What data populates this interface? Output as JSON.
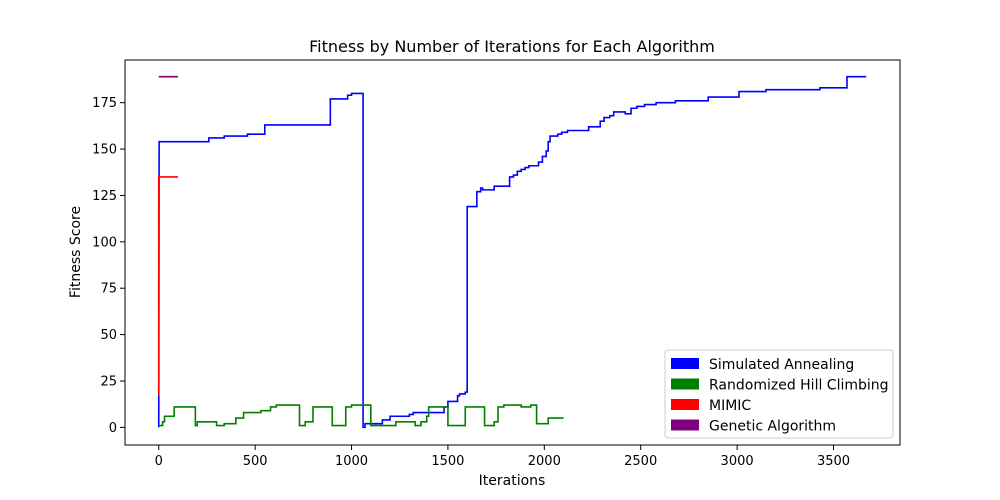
{
  "chart_data": {
    "type": "line",
    "title": "Fitness by Number of Iterations for Each Algorithm",
    "xlabel": "Iterations",
    "ylabel": "Fitness Score",
    "xlim": [
      -175,
      3845
    ],
    "ylim": [
      -9.5,
      198
    ],
    "xticks": [
      0,
      500,
      1000,
      1500,
      2000,
      2500,
      3000,
      3500
    ],
    "yticks": [
      0,
      25,
      50,
      75,
      100,
      125,
      150,
      175
    ],
    "grid": false,
    "legend_position": "lower-right",
    "series": [
      {
        "name": "Simulated Annealing",
        "color": "#0000ff",
        "points": [
          [
            0,
            0
          ],
          [
            2,
            154
          ],
          [
            260,
            154
          ],
          [
            260,
            156
          ],
          [
            340,
            156
          ],
          [
            340,
            157
          ],
          [
            460,
            157
          ],
          [
            460,
            158
          ],
          [
            550,
            158
          ],
          [
            550,
            163
          ],
          [
            890,
            163
          ],
          [
            890,
            177
          ],
          [
            980,
            177
          ],
          [
            980,
            179
          ],
          [
            1000,
            179
          ],
          [
            1000,
            180
          ],
          [
            1060,
            180
          ],
          [
            1060,
            0
          ],
          [
            1070,
            0
          ],
          [
            1070,
            2
          ],
          [
            1160,
            2
          ],
          [
            1160,
            4
          ],
          [
            1200,
            4
          ],
          [
            1200,
            6
          ],
          [
            1300,
            6
          ],
          [
            1300,
            7
          ],
          [
            1320,
            7
          ],
          [
            1320,
            8
          ],
          [
            1480,
            8
          ],
          [
            1480,
            11
          ],
          [
            1500,
            11
          ],
          [
            1500,
            14
          ],
          [
            1550,
            14
          ],
          [
            1550,
            17
          ],
          [
            1560,
            17
          ],
          [
            1560,
            18
          ],
          [
            1590,
            18
          ],
          [
            1590,
            19
          ],
          [
            1600,
            19
          ],
          [
            1600,
            119
          ],
          [
            1650,
            119
          ],
          [
            1650,
            127
          ],
          [
            1670,
            127
          ],
          [
            1670,
            129
          ],
          [
            1680,
            129
          ],
          [
            1680,
            128
          ],
          [
            1740,
            128
          ],
          [
            1740,
            130
          ],
          [
            1820,
            130
          ],
          [
            1820,
            135
          ],
          [
            1840,
            135
          ],
          [
            1840,
            136
          ],
          [
            1860,
            136
          ],
          [
            1860,
            138
          ],
          [
            1880,
            138
          ],
          [
            1880,
            139
          ],
          [
            1900,
            139
          ],
          [
            1900,
            140
          ],
          [
            1920,
            140
          ],
          [
            1920,
            141
          ],
          [
            1970,
            141
          ],
          [
            1970,
            143
          ],
          [
            1990,
            143
          ],
          [
            1990,
            146
          ],
          [
            2010,
            146
          ],
          [
            2010,
            149
          ],
          [
            2020,
            149
          ],
          [
            2020,
            154
          ],
          [
            2030,
            154
          ],
          [
            2030,
            157
          ],
          [
            2070,
            157
          ],
          [
            2070,
            158
          ],
          [
            2090,
            158
          ],
          [
            2090,
            159
          ],
          [
            2120,
            159
          ],
          [
            2120,
            160
          ],
          [
            2230,
            160
          ],
          [
            2230,
            162
          ],
          [
            2290,
            162
          ],
          [
            2290,
            165
          ],
          [
            2310,
            165
          ],
          [
            2310,
            167
          ],
          [
            2340,
            167
          ],
          [
            2340,
            168
          ],
          [
            2360,
            168
          ],
          [
            2360,
            170
          ],
          [
            2420,
            170
          ],
          [
            2420,
            169
          ],
          [
            2450,
            169
          ],
          [
            2450,
            172
          ],
          [
            2480,
            172
          ],
          [
            2480,
            173
          ],
          [
            2520,
            173
          ],
          [
            2520,
            174
          ],
          [
            2580,
            174
          ],
          [
            2580,
            175
          ],
          [
            2680,
            175
          ],
          [
            2680,
            176
          ],
          [
            2850,
            176
          ],
          [
            2850,
            178
          ],
          [
            3010,
            178
          ],
          [
            3010,
            181
          ],
          [
            3150,
            181
          ],
          [
            3150,
            182
          ],
          [
            3430,
            182
          ],
          [
            3430,
            183
          ],
          [
            3570,
            183
          ],
          [
            3570,
            189
          ],
          [
            3670,
            189
          ]
        ]
      },
      {
        "name": "Randomized Hill Climbing",
        "color": "#008000",
        "points": [
          [
            0,
            1
          ],
          [
            20,
            1
          ],
          [
            20,
            3
          ],
          [
            30,
            3
          ],
          [
            30,
            6
          ],
          [
            80,
            6
          ],
          [
            80,
            11
          ],
          [
            190,
            11
          ],
          [
            190,
            1
          ],
          [
            200,
            1
          ],
          [
            200,
            3
          ],
          [
            300,
            3
          ],
          [
            300,
            1
          ],
          [
            340,
            1
          ],
          [
            340,
            2
          ],
          [
            400,
            2
          ],
          [
            400,
            5
          ],
          [
            440,
            5
          ],
          [
            440,
            8
          ],
          [
            530,
            8
          ],
          [
            530,
            9
          ],
          [
            580,
            9
          ],
          [
            580,
            11
          ],
          [
            610,
            11
          ],
          [
            610,
            12
          ],
          [
            730,
            12
          ],
          [
            730,
            1
          ],
          [
            760,
            1
          ],
          [
            760,
            3
          ],
          [
            800,
            3
          ],
          [
            800,
            11
          ],
          [
            900,
            11
          ],
          [
            900,
            1
          ],
          [
            970,
            1
          ],
          [
            970,
            11
          ],
          [
            1000,
            11
          ],
          [
            1000,
            12
          ],
          [
            1100,
            12
          ],
          [
            1100,
            1
          ],
          [
            1230,
            1
          ],
          [
            1230,
            3
          ],
          [
            1330,
            3
          ],
          [
            1330,
            1
          ],
          [
            1360,
            1
          ],
          [
            1360,
            3
          ],
          [
            1390,
            3
          ],
          [
            1390,
            6
          ],
          [
            1400,
            6
          ],
          [
            1400,
            11
          ],
          [
            1500,
            11
          ],
          [
            1500,
            1
          ],
          [
            1590,
            1
          ],
          [
            1590,
            11
          ],
          [
            1690,
            11
          ],
          [
            1690,
            1
          ],
          [
            1740,
            1
          ],
          [
            1740,
            3
          ],
          [
            1760,
            3
          ],
          [
            1760,
            11
          ],
          [
            1790,
            11
          ],
          [
            1790,
            12
          ],
          [
            1880,
            12
          ],
          [
            1880,
            11
          ],
          [
            1930,
            11
          ],
          [
            1930,
            12
          ],
          [
            1960,
            12
          ],
          [
            1960,
            2
          ],
          [
            2020,
            2
          ],
          [
            2020,
            5
          ],
          [
            2100,
            5
          ]
        ]
      },
      {
        "name": "MIMIC",
        "color": "#ff0000",
        "points": [
          [
            0,
            17
          ],
          [
            0,
            135
          ],
          [
            100,
            135
          ]
        ]
      },
      {
        "name": "Genetic Algorithm",
        "color": "#800080",
        "points": [
          [
            0,
            189
          ],
          [
            100,
            189
          ]
        ]
      }
    ]
  }
}
